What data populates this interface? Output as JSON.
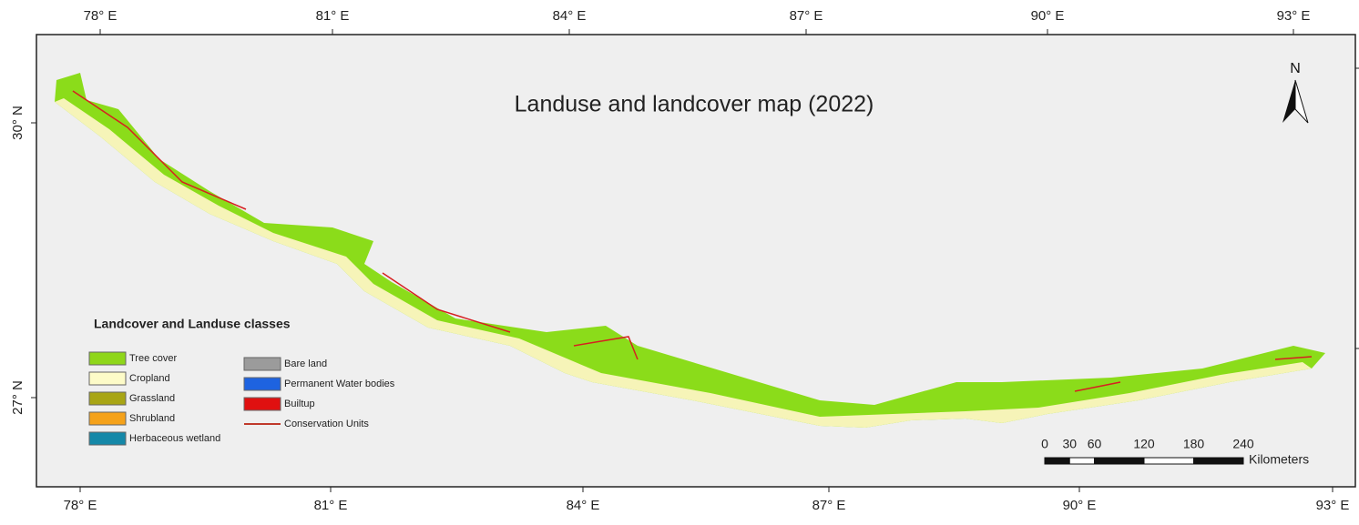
{
  "title": "Landuse and landcover map (2022)",
  "top_axis": [
    "78° E",
    "81° E",
    "84° E",
    "87° E",
    "90° E",
    "93° E"
  ],
  "bottom_axis": [
    "78° E",
    "81° E",
    "84° E",
    "87° E",
    "90° E",
    "93° E"
  ],
  "left_axis": [
    "30° N",
    "27° N"
  ],
  "north": "N",
  "legend": {
    "title": "Landcover and Landuse classes",
    "items": [
      {
        "label": "Tree cover",
        "color": "#8fd61a"
      },
      {
        "label": "Cropland",
        "color": "#fdfbc8"
      },
      {
        "label": "Grassland",
        "color": "#a8a515"
      },
      {
        "label": "Shrubland",
        "color": "#f5a21a"
      },
      {
        "label": "Herbaceous wetland",
        "color": "#1588a8"
      },
      {
        "label": "Bare land",
        "color": "#9b9b9b"
      },
      {
        "label": "Permanent Water bodies",
        "color": "#1e63e0"
      },
      {
        "label": "Builtup",
        "color": "#e01010"
      },
      {
        "label": "Conservation Units",
        "color": "#c0392b"
      }
    ]
  },
  "scale_bar": {
    "ticks": [
      0,
      30,
      60,
      120,
      180,
      240
    ],
    "unit": "Kilometers"
  }
}
